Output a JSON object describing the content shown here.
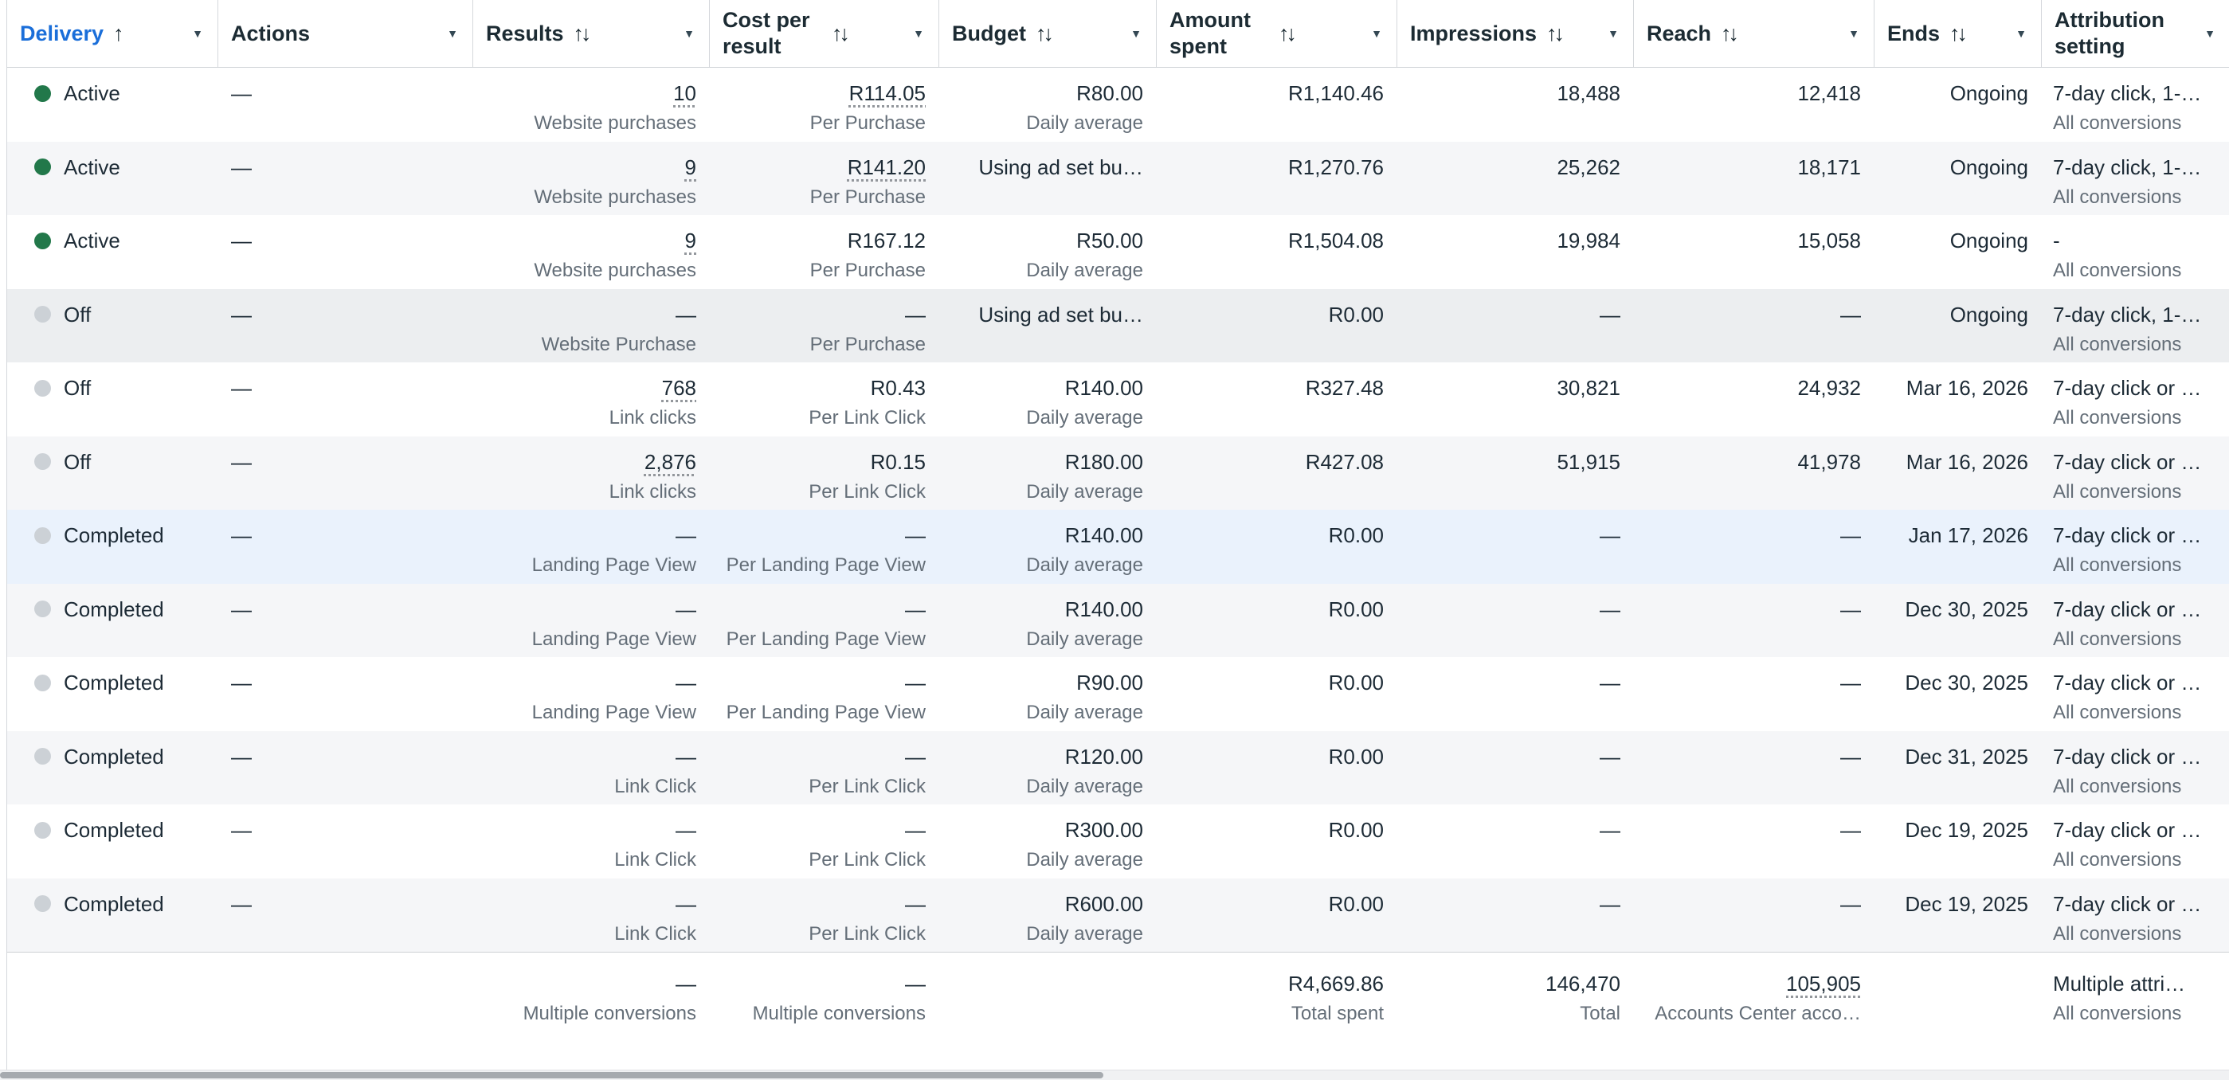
{
  "colors": {
    "active_dot_green": "#22784a",
    "inactive_dot_gray": "#ccd1d6",
    "sorted_header_blue": "#1a6ed9",
    "selected_row_blue": "#eaf2fc",
    "alt_row_gray": "#f5f6f8",
    "primary_text": "#1d2b36",
    "secondary_text": "#646e78"
  },
  "table": {
    "columns": [
      {
        "id": "delivery",
        "label": "Delivery",
        "sort_glyph": "↑"
      },
      {
        "id": "actions",
        "label": "Actions",
        "sort_glyph": ""
      },
      {
        "id": "results",
        "label": "Results",
        "sort_glyph": "↑↓"
      },
      {
        "id": "cost",
        "label": "Cost per result",
        "sort_glyph": "↑↓"
      },
      {
        "id": "budget",
        "label": "Budget",
        "sort_glyph": "↑↓"
      },
      {
        "id": "amount",
        "label": "Amount spent",
        "sort_glyph": "↑↓"
      },
      {
        "id": "impressions",
        "label": "Impressions",
        "sort_glyph": "↑↓"
      },
      {
        "id": "reach",
        "label": "Reach",
        "sort_glyph": "↑↓"
      },
      {
        "id": "ends",
        "label": "Ends",
        "sort_glyph": "↑↓"
      },
      {
        "id": "attribution",
        "label": "Attribution setting",
        "sort_glyph": ""
      }
    ],
    "rows": [
      {
        "bg": "",
        "dot": "green",
        "status": "Active",
        "actions": "—",
        "results": "10",
        "results_u": true,
        "results_sub": "Website purchases",
        "cost": "R114.05",
        "cost_u": true,
        "cost_sub": "Per Purchase",
        "budget": "R80.00",
        "budget_sub": "Daily average",
        "amount": "R1,140.46",
        "impressions": "18,488",
        "reach": "12,418",
        "ends": "Ongoing",
        "attr": "7-day click, 1-…",
        "attr_sub": "All conversions"
      },
      {
        "bg": "alt",
        "dot": "green",
        "status": "Active",
        "actions": "—",
        "results": "9",
        "results_u": true,
        "results_sub": "Website purchases",
        "cost": "R141.20",
        "cost_u": true,
        "cost_sub": "Per Purchase",
        "budget": "Using ad set bu…",
        "budget_sub": "",
        "amount": "R1,270.76",
        "impressions": "25,262",
        "reach": "18,171",
        "ends": "Ongoing",
        "attr": "7-day click, 1-…",
        "attr_sub": "All conversions"
      },
      {
        "bg": "",
        "dot": "green",
        "status": "Active",
        "actions": "—",
        "results": "9",
        "results_u": true,
        "results_sub": "Website purchases",
        "cost": "R167.12",
        "cost_u": false,
        "cost_sub": "Per Purchase",
        "budget": "R50.00",
        "budget_sub": "Daily average",
        "amount": "R1,504.08",
        "impressions": "19,984",
        "reach": "15,058",
        "ends": "Ongoing",
        "attr": "-",
        "attr_sub": "All conversions"
      },
      {
        "bg": "alt-dark",
        "dot": "gray",
        "status": "Off",
        "actions": "—",
        "results": "—",
        "results_u": false,
        "results_sub": "Website Purchase",
        "cost": "—",
        "cost_u": false,
        "cost_sub": "Per Purchase",
        "budget": "Using ad set bu…",
        "budget_sub": "",
        "amount": "R0.00",
        "impressions": "—",
        "reach": "—",
        "ends": "Ongoing",
        "attr": "7-day click, 1-…",
        "attr_sub": "All conversions"
      },
      {
        "bg": "",
        "dot": "gray",
        "status": "Off",
        "actions": "—",
        "results": "768",
        "results_u": true,
        "results_sub": "Link clicks",
        "cost": "R0.43",
        "cost_u": false,
        "cost_sub": "Per Link Click",
        "budget": "R140.00",
        "budget_sub": "Daily average",
        "amount": "R327.48",
        "impressions": "30,821",
        "reach": "24,932",
        "ends": "Mar 16, 2026",
        "attr": "7-day click or …",
        "attr_sub": "All conversions"
      },
      {
        "bg": "alt",
        "dot": "gray",
        "status": "Off",
        "actions": "—",
        "results": "2,876",
        "results_u": true,
        "results_sub": "Link clicks",
        "cost": "R0.15",
        "cost_u": false,
        "cost_sub": "Per Link Click",
        "budget": "R180.00",
        "budget_sub": "Daily average",
        "amount": "R427.08",
        "impressions": "51,915",
        "reach": "41,978",
        "ends": "Mar 16, 2026",
        "attr": "7-day click or …",
        "attr_sub": "All conversions"
      },
      {
        "bg": "selected",
        "dot": "gray",
        "status": "Completed",
        "actions": "—",
        "results": "—",
        "results_u": false,
        "results_sub": "Landing Page View",
        "cost": "—",
        "cost_u": false,
        "cost_sub": "Per Landing Page View",
        "budget": "R140.00",
        "budget_sub": "Daily average",
        "amount": "R0.00",
        "impressions": "—",
        "reach": "—",
        "ends": "Jan 17, 2026",
        "attr": "7-day click or …",
        "attr_sub": "All conversions"
      },
      {
        "bg": "alt",
        "dot": "gray",
        "status": "Completed",
        "actions": "—",
        "results": "—",
        "results_u": false,
        "results_sub": "Landing Page View",
        "cost": "—",
        "cost_u": false,
        "cost_sub": "Per Landing Page View",
        "budget": "R140.00",
        "budget_sub": "Daily average",
        "amount": "R0.00",
        "impressions": "—",
        "reach": "—",
        "ends": "Dec 30, 2025",
        "attr": "7-day click or …",
        "attr_sub": "All conversions"
      },
      {
        "bg": "",
        "dot": "gray",
        "status": "Completed",
        "actions": "—",
        "results": "—",
        "results_u": false,
        "results_sub": "Landing Page View",
        "cost": "—",
        "cost_u": false,
        "cost_sub": "Per Landing Page View",
        "budget": "R90.00",
        "budget_sub": "Daily average",
        "amount": "R0.00",
        "impressions": "—",
        "reach": "—",
        "ends": "Dec 30, 2025",
        "attr": "7-day click or …",
        "attr_sub": "All conversions"
      },
      {
        "bg": "alt",
        "dot": "gray",
        "status": "Completed",
        "actions": "—",
        "results": "—",
        "results_u": false,
        "results_sub": "Link Click",
        "cost": "—",
        "cost_u": false,
        "cost_sub": "Per Link Click",
        "budget": "R120.00",
        "budget_sub": "Daily average",
        "amount": "R0.00",
        "impressions": "—",
        "reach": "—",
        "ends": "Dec 31, 2025",
        "attr": "7-day click or …",
        "attr_sub": "All conversions"
      },
      {
        "bg": "",
        "dot": "gray",
        "status": "Completed",
        "actions": "—",
        "results": "—",
        "results_u": false,
        "results_sub": "Link Click",
        "cost": "—",
        "cost_u": false,
        "cost_sub": "Per Link Click",
        "budget": "R300.00",
        "budget_sub": "Daily average",
        "amount": "R0.00",
        "impressions": "—",
        "reach": "—",
        "ends": "Dec 19, 2025",
        "attr": "7-day click or …",
        "attr_sub": "All conversions"
      },
      {
        "bg": "alt",
        "dot": "gray",
        "status": "Completed",
        "actions": "—",
        "results": "—",
        "results_u": false,
        "results_sub": "Link Click",
        "cost": "—",
        "cost_u": false,
        "cost_sub": "Per Link Click",
        "budget": "R600.00",
        "budget_sub": "Daily average",
        "amount": "R0.00",
        "impressions": "—",
        "reach": "—",
        "ends": "Dec 19, 2025",
        "attr": "7-day click or …",
        "attr_sub": "All conversions"
      }
    ],
    "footer": {
      "results": {
        "value": "—",
        "sub": "Multiple conversions"
      },
      "cost": {
        "value": "—",
        "sub": "Multiple conversions"
      },
      "amount": {
        "value": "R4,669.86",
        "sub": "Total spent"
      },
      "impressions": {
        "value": "146,470",
        "sub": "Total"
      },
      "reach": {
        "value": "105,905",
        "sub": "Accounts Center acco…"
      },
      "attribution": {
        "value": "Multiple attri…",
        "sub": "All conversions"
      }
    }
  }
}
